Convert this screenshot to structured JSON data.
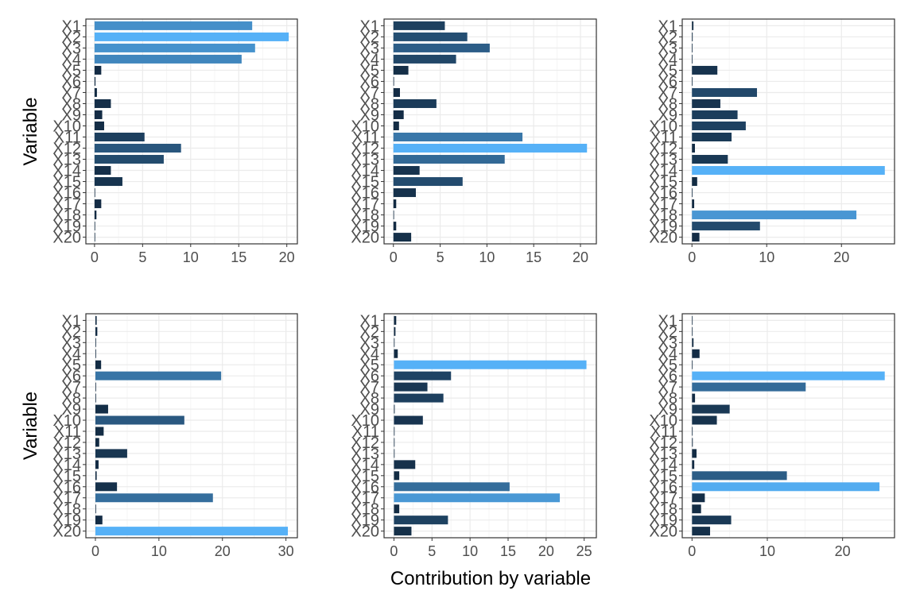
{
  "figure": {
    "xlabel": "Contribution by variable",
    "ylabel": "Variable"
  },
  "chart_data": [
    {
      "type": "bar",
      "orientation": "horizontal",
      "categories": [
        "X1",
        "X2",
        "X3",
        "X4",
        "X5",
        "X6",
        "X7",
        "X8",
        "X9",
        "X10",
        "X11",
        "X12",
        "X13",
        "X14",
        "X15",
        "X16",
        "X17",
        "X18",
        "X19",
        "X20"
      ],
      "values": [
        16.4,
        20.2,
        16.7,
        15.3,
        0.7,
        0.1,
        0.25,
        1.7,
        0.8,
        1.0,
        5.2,
        9.0,
        7.2,
        1.7,
        2.9,
        0.05,
        0.7,
        0.2,
        0.05,
        0.05
      ],
      "xlim": [
        -0.9,
        21.1
      ],
      "xticks": [
        0,
        5,
        10,
        15,
        20
      ],
      "ylabel": "Variable",
      "xlabel": "",
      "grid": true
    },
    {
      "type": "bar",
      "orientation": "horizontal",
      "categories": [
        "X1",
        "X2",
        "X3",
        "X4",
        "X5",
        "X6",
        "X7",
        "X8",
        "X9",
        "X10",
        "X11",
        "X12",
        "X13",
        "X14",
        "X15",
        "X16",
        "X17",
        "X18",
        "X19",
        "X20"
      ],
      "values": [
        5.5,
        7.9,
        10.3,
        6.7,
        1.6,
        0.05,
        0.7,
        4.6,
        1.1,
        0.6,
        13.8,
        20.7,
        11.9,
        2.8,
        7.4,
        2.4,
        0.3,
        0.05,
        0.3,
        1.9
      ],
      "xlim": [
        -1.0,
        21.7
      ],
      "xticks": [
        0,
        5,
        10,
        15,
        20
      ],
      "ylabel": "",
      "xlabel": "",
      "grid": true
    },
    {
      "type": "bar",
      "orientation": "horizontal",
      "categories": [
        "X1",
        "X2",
        "X3",
        "X4",
        "X5",
        "X6",
        "X7",
        "X8",
        "X9",
        "X10",
        "X11",
        "X12",
        "X13",
        "X14",
        "X15",
        "X16",
        "X17",
        "X18",
        "X19",
        "X20"
      ],
      "values": [
        0.2,
        0.1,
        0.05,
        0.05,
        3.4,
        0.05,
        8.7,
        3.8,
        6.1,
        7.2,
        5.3,
        0.4,
        4.8,
        25.8,
        0.7,
        0.05,
        0.3,
        22.0,
        9.1,
        1.0
      ],
      "xlim": [
        -1.3,
        27.1
      ],
      "xticks": [
        0,
        10,
        20
      ],
      "ylabel": "",
      "xlabel": "",
      "grid": true
    },
    {
      "type": "bar",
      "orientation": "horizontal",
      "categories": [
        "X1",
        "X2",
        "X3",
        "X4",
        "X5",
        "X6",
        "X7",
        "X8",
        "X9",
        "X10",
        "X11",
        "X12",
        "X13",
        "X14",
        "X15",
        "X16",
        "X17",
        "X18",
        "X19",
        "X20"
      ],
      "values": [
        0.2,
        0.3,
        0.1,
        0.05,
        0.9,
        19.8,
        0.05,
        0.05,
        2.0,
        14.0,
        1.3,
        0.6,
        5.0,
        0.5,
        0.2,
        3.4,
        18.5,
        0.05,
        1.1,
        30.3
      ],
      "xlim": [
        -1.5,
        31.8
      ],
      "xticks": [
        0,
        10,
        20,
        30
      ],
      "ylabel": "Variable",
      "xlabel": "",
      "grid": true
    },
    {
      "type": "bar",
      "orientation": "horizontal",
      "categories": [
        "X1",
        "X2",
        "X3",
        "X4",
        "X5",
        "X6",
        "X7",
        "X8",
        "X9",
        "X10",
        "X11",
        "X12",
        "X13",
        "X14",
        "X15",
        "X16",
        "X17",
        "X18",
        "X19",
        "X20"
      ],
      "values": [
        0.3,
        0.2,
        0.05,
        0.5,
        25.3,
        7.5,
        4.4,
        6.5,
        0.1,
        3.8,
        0.05,
        0.05,
        0.05,
        2.8,
        0.7,
        15.2,
        21.8,
        0.7,
        7.1,
        2.3
      ],
      "xlim": [
        -1.3,
        26.6
      ],
      "xticks": [
        0,
        5,
        10,
        15,
        20,
        25
      ],
      "ylabel": "",
      "xlabel": "",
      "grid": true
    },
    {
      "type": "bar",
      "orientation": "horizontal",
      "categories": [
        "X1",
        "X2",
        "X3",
        "X4",
        "X5",
        "X6",
        "X7",
        "X8",
        "X9",
        "X10",
        "X11",
        "X12",
        "X13",
        "X14",
        "X15",
        "X16",
        "X17",
        "X18",
        "X19",
        "X20"
      ],
      "values": [
        0.05,
        0.05,
        0.2,
        1.0,
        0.05,
        25.6,
        15.1,
        0.4,
        5.0,
        3.3,
        0.05,
        0.1,
        0.6,
        0.3,
        12.6,
        24.9,
        1.7,
        1.2,
        5.2,
        2.4
      ],
      "xlim": [
        -1.3,
        26.9
      ],
      "xticks": [
        0,
        10,
        20
      ],
      "ylabel": "",
      "xlabel": "",
      "grid": true
    }
  ],
  "style": {
    "panel_border": "#333333",
    "grid_major": "#ebebeb",
    "grid_minor": "#f5f5f5",
    "tick_color": "#333333",
    "bar_low": "#132b43",
    "bar_high": "#56b1f7"
  }
}
